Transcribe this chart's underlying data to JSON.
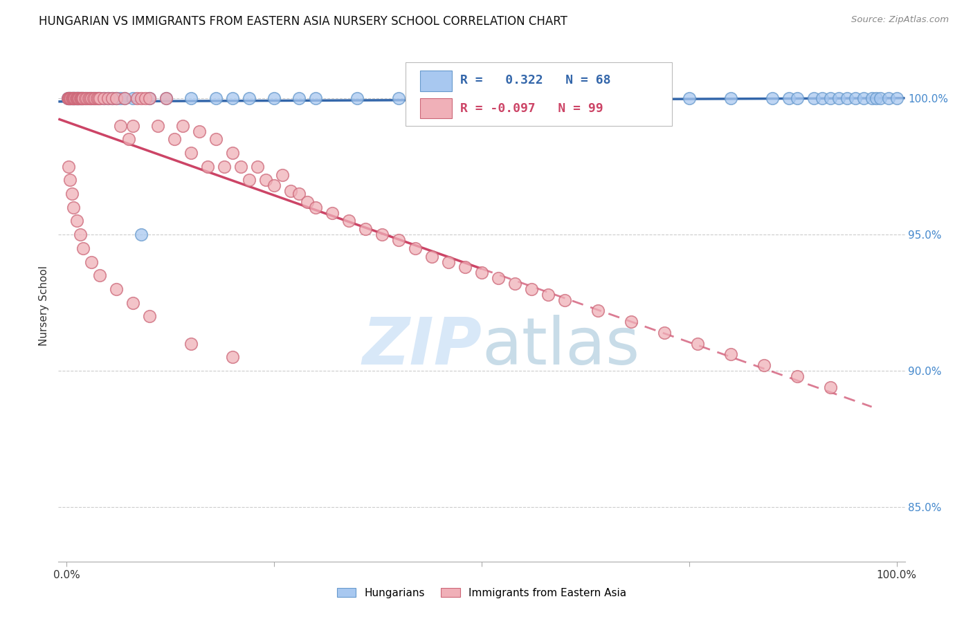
{
  "title": "HUNGARIAN VS IMMIGRANTS FROM EASTERN ASIA NURSERY SCHOOL CORRELATION CHART",
  "source": "Source: ZipAtlas.com",
  "ylabel": "Nursery School",
  "legend_label1": "Hungarians",
  "legend_label2": "Immigrants from Eastern Asia",
  "R1": 0.322,
  "N1": 68,
  "R2": -0.097,
  "N2": 99,
  "color_blue": "#a8c8f0",
  "color_blue_edge": "#6699cc",
  "color_pink": "#f0b0b8",
  "color_pink_edge": "#cc6677",
  "color_blue_line": "#3366aa",
  "color_pink_line": "#cc4466",
  "watermark_color": "#d8e8f8",
  "blue_x": [
    0.001,
    0.002,
    0.003,
    0.004,
    0.005,
    0.006,
    0.007,
    0.008,
    0.009,
    0.01,
    0.011,
    0.012,
    0.013,
    0.014,
    0.015,
    0.016,
    0.018,
    0.02,
    0.022,
    0.025,
    0.028,
    0.03,
    0.032,
    0.035,
    0.038,
    0.04,
    0.045,
    0.05,
    0.055,
    0.06,
    0.065,
    0.07,
    0.08,
    0.09,
    0.1,
    0.12,
    0.15,
    0.18,
    0.2,
    0.22,
    0.25,
    0.28,
    0.3,
    0.35,
    0.4,
    0.45,
    0.5,
    0.55,
    0.6,
    0.65,
    0.7,
    0.75,
    0.8,
    0.85,
    0.87,
    0.88,
    0.9,
    0.91,
    0.92,
    0.93,
    0.94,
    0.95,
    0.96,
    0.97,
    0.975,
    0.98,
    0.99,
    1.0
  ],
  "blue_y": [
    1.0,
    1.0,
    1.0,
    1.0,
    1.0,
    1.0,
    1.0,
    1.0,
    1.0,
    1.0,
    1.0,
    1.0,
    1.0,
    1.0,
    1.0,
    1.0,
    1.0,
    1.0,
    1.0,
    1.0,
    1.0,
    1.0,
    1.0,
    1.0,
    1.0,
    1.0,
    1.0,
    1.0,
    1.0,
    1.0,
    1.0,
    1.0,
    1.0,
    0.95,
    1.0,
    1.0,
    1.0,
    1.0,
    1.0,
    1.0,
    1.0,
    1.0,
    1.0,
    1.0,
    1.0,
    1.0,
    1.0,
    1.0,
    1.0,
    1.0,
    1.0,
    1.0,
    1.0,
    1.0,
    1.0,
    1.0,
    1.0,
    1.0,
    1.0,
    1.0,
    1.0,
    1.0,
    1.0,
    1.0,
    1.0,
    1.0,
    1.0,
    1.0
  ],
  "pink_x": [
    0.001,
    0.002,
    0.003,
    0.004,
    0.005,
    0.006,
    0.007,
    0.008,
    0.009,
    0.01,
    0.011,
    0.012,
    0.013,
    0.014,
    0.015,
    0.016,
    0.017,
    0.018,
    0.019,
    0.02,
    0.022,
    0.024,
    0.026,
    0.028,
    0.03,
    0.032,
    0.034,
    0.036,
    0.038,
    0.04,
    0.045,
    0.05,
    0.055,
    0.06,
    0.065,
    0.07,
    0.075,
    0.08,
    0.085,
    0.09,
    0.095,
    0.1,
    0.11,
    0.12,
    0.13,
    0.14,
    0.15,
    0.16,
    0.17,
    0.18,
    0.19,
    0.2,
    0.21,
    0.22,
    0.23,
    0.24,
    0.25,
    0.26,
    0.27,
    0.28,
    0.29,
    0.3,
    0.32,
    0.34,
    0.36,
    0.38,
    0.4,
    0.42,
    0.44,
    0.46,
    0.48,
    0.5,
    0.52,
    0.54,
    0.56,
    0.58,
    0.6,
    0.64,
    0.68,
    0.72,
    0.76,
    0.8,
    0.84,
    0.88,
    0.92,
    0.002,
    0.004,
    0.006,
    0.008,
    0.012,
    0.016,
    0.02,
    0.03,
    0.04,
    0.06,
    0.08,
    0.1,
    0.15,
    0.2
  ],
  "pink_y": [
    1.0,
    1.0,
    1.0,
    1.0,
    1.0,
    1.0,
    1.0,
    1.0,
    1.0,
    1.0,
    1.0,
    1.0,
    1.0,
    1.0,
    1.0,
    1.0,
    1.0,
    1.0,
    1.0,
    1.0,
    1.0,
    1.0,
    1.0,
    1.0,
    1.0,
    1.0,
    1.0,
    1.0,
    1.0,
    1.0,
    1.0,
    1.0,
    1.0,
    1.0,
    0.99,
    1.0,
    0.985,
    0.99,
    1.0,
    1.0,
    1.0,
    1.0,
    0.99,
    1.0,
    0.985,
    0.99,
    0.98,
    0.988,
    0.975,
    0.985,
    0.975,
    0.98,
    0.975,
    0.97,
    0.975,
    0.97,
    0.968,
    0.972,
    0.966,
    0.965,
    0.962,
    0.96,
    0.958,
    0.955,
    0.952,
    0.95,
    0.948,
    0.945,
    0.942,
    0.94,
    0.938,
    0.936,
    0.934,
    0.932,
    0.93,
    0.928,
    0.926,
    0.922,
    0.918,
    0.914,
    0.91,
    0.906,
    0.902,
    0.898,
    0.894,
    0.975,
    0.97,
    0.965,
    0.96,
    0.955,
    0.95,
    0.945,
    0.94,
    0.935,
    0.93,
    0.925,
    0.92,
    0.91,
    0.905
  ]
}
